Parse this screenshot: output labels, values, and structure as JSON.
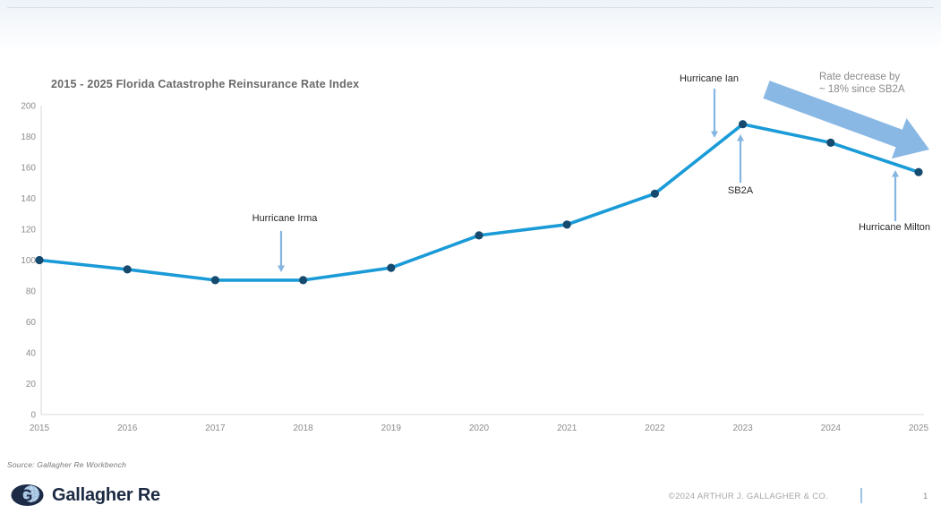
{
  "chart_data": {
    "type": "line",
    "title": "2015 - 2025 Florida Catastrophe Reinsurance Rate Index",
    "categories": [
      "2015",
      "2016",
      "2017",
      "2018",
      "2019",
      "2020",
      "2021",
      "2022",
      "2023",
      "2024",
      "2025"
    ],
    "values": [
      100,
      94,
      87,
      87,
      95,
      116,
      123,
      143,
      188,
      176,
      157
    ],
    "ylim": [
      0,
      200
    ],
    "yticks": [
      0,
      20,
      40,
      60,
      80,
      100,
      120,
      140,
      160,
      180,
      200
    ],
    "grid": false,
    "line_color": "#1a9bd7",
    "marker_color": "#164a6e",
    "axis_color": "#d9d9d9",
    "tick_color": "#8c8c8c",
    "annotation_arrow_color": "#85b5e2",
    "trend_arrow_color": "#8ab8e5",
    "annotations": [
      {
        "label": "Hurricane Irma",
        "points_to": "2017-2018 trough (~87)"
      },
      {
        "label": "Hurricane Ian",
        "points_to": "2022-2023 rise"
      },
      {
        "label": "SB2A",
        "points_to": "2023 peak (~188)"
      },
      {
        "label": "Hurricane Milton",
        "points_to": "2024-2025 decline"
      }
    ],
    "trend_note": {
      "lines": [
        "Rate decrease by",
        "~ 18% since SB2A"
      ],
      "points_to": "downward trend arrow from 2023 to 2025"
    }
  },
  "source": {
    "text": "Source: Gallagher Re Workbench"
  },
  "footer": {
    "logo_text": "Gallagher Re",
    "copyright": "©2024 ARTHUR J. GALLAGHER & CO.",
    "page_number": "1"
  }
}
